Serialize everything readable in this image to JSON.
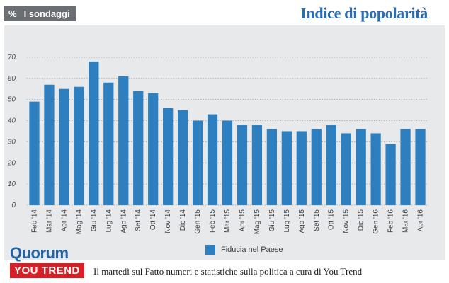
{
  "header": {
    "badge_symbol": "%",
    "badge_label": "I sondaggi",
    "title": "Indice di popolarità"
  },
  "footer": {
    "logo_quorum": "Quorum",
    "logo_youtrend": "YOU TREND",
    "text": "Il martedì sul Fatto numeri e statistiche sulla politica a cura di You Trend"
  },
  "colors": {
    "bar": "#2d7fc0",
    "title": "#2a6db5",
    "panel": "#e8e9ea",
    "badge": "#6b6e72",
    "youtrend": "#d61f26"
  },
  "chart_data": {
    "type": "bar",
    "title": "Indice di popolarità",
    "categories": [
      "Feb '14",
      "Mar '14",
      "Apr '14",
      "Mag '14",
      "Giu '14",
      "Lug '14",
      "Ago '14",
      "Set '14",
      "Ott '14",
      "Nov '14",
      "Dic '14",
      "Gen '15",
      "Feb '15",
      "Mar '15",
      "Apr '15",
      "Mag '15",
      "Giu '15",
      "Lug '15",
      "Ago '15",
      "Set '15",
      "Ott '15",
      "Nov '15",
      "Dic '15",
      "Gen '16",
      "Feb '16",
      "Mar '16",
      "Apr '16"
    ],
    "series": [
      {
        "name": "Fiducia nel Paese",
        "values": [
          49,
          57,
          55,
          56,
          68,
          58,
          61,
          54,
          53,
          46,
          45,
          40,
          43,
          40,
          38,
          38,
          36,
          35,
          35,
          36,
          38,
          34,
          36,
          34,
          29,
          36,
          36
        ]
      }
    ],
    "yticks": [
      0,
      10,
      20,
      30,
      40,
      50,
      60,
      70
    ],
    "ylim": [
      0,
      75
    ],
    "grid": true,
    "legend": "bottom-center"
  }
}
